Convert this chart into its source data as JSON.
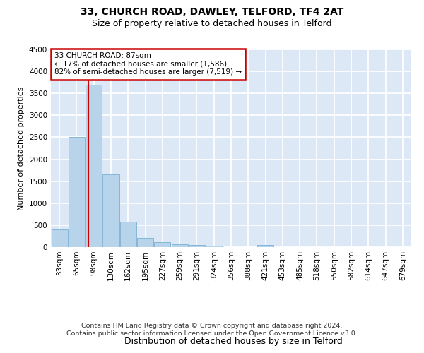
{
  "title1": "33, CHURCH ROAD, DAWLEY, TELFORD, TF4 2AT",
  "title2": "Size of property relative to detached houses in Telford",
  "xlabel": "Distribution of detached houses by size in Telford",
  "ylabel": "Number of detached properties",
  "bar_labels": [
    "33sqm",
    "65sqm",
    "98sqm",
    "130sqm",
    "162sqm",
    "195sqm",
    "227sqm",
    "259sqm",
    "291sqm",
    "324sqm",
    "356sqm",
    "388sqm",
    "421sqm",
    "453sqm",
    "485sqm",
    "518sqm",
    "550sqm",
    "582sqm",
    "614sqm",
    "647sqm",
    "679sqm"
  ],
  "bar_values": [
    400,
    2500,
    3700,
    1650,
    580,
    210,
    110,
    60,
    50,
    30,
    0,
    0,
    50,
    0,
    0,
    0,
    0,
    0,
    0,
    0,
    0
  ],
  "bar_color": "#b8d4ea",
  "bar_edge_color": "#7aafd4",
  "background_color": "#dce8f5",
  "grid_color": "#ffffff",
  "ylim": [
    0,
    4500
  ],
  "yticks": [
    0,
    500,
    1000,
    1500,
    2000,
    2500,
    3000,
    3500,
    4000,
    4500
  ],
  "property_size_sqm": 87,
  "annotation_line1": "33 CHURCH ROAD: 87sqm",
  "annotation_line2": "← 17% of detached houses are smaller (1,586)",
  "annotation_line3": "82% of semi-detached houses are larger (7,519) →",
  "annotation_box_color": "#ffffff",
  "annotation_border_color": "#cc0000",
  "red_line_color": "#cc0000",
  "footer_text": "Contains HM Land Registry data © Crown copyright and database right 2024.\nContains public sector information licensed under the Open Government Licence v3.0.",
  "title_fontsize": 10,
  "subtitle_fontsize": 9,
  "ylabel_fontsize": 8,
  "xlabel_fontsize": 9,
  "tick_fontsize": 7.5,
  "footer_fontsize": 6.8
}
